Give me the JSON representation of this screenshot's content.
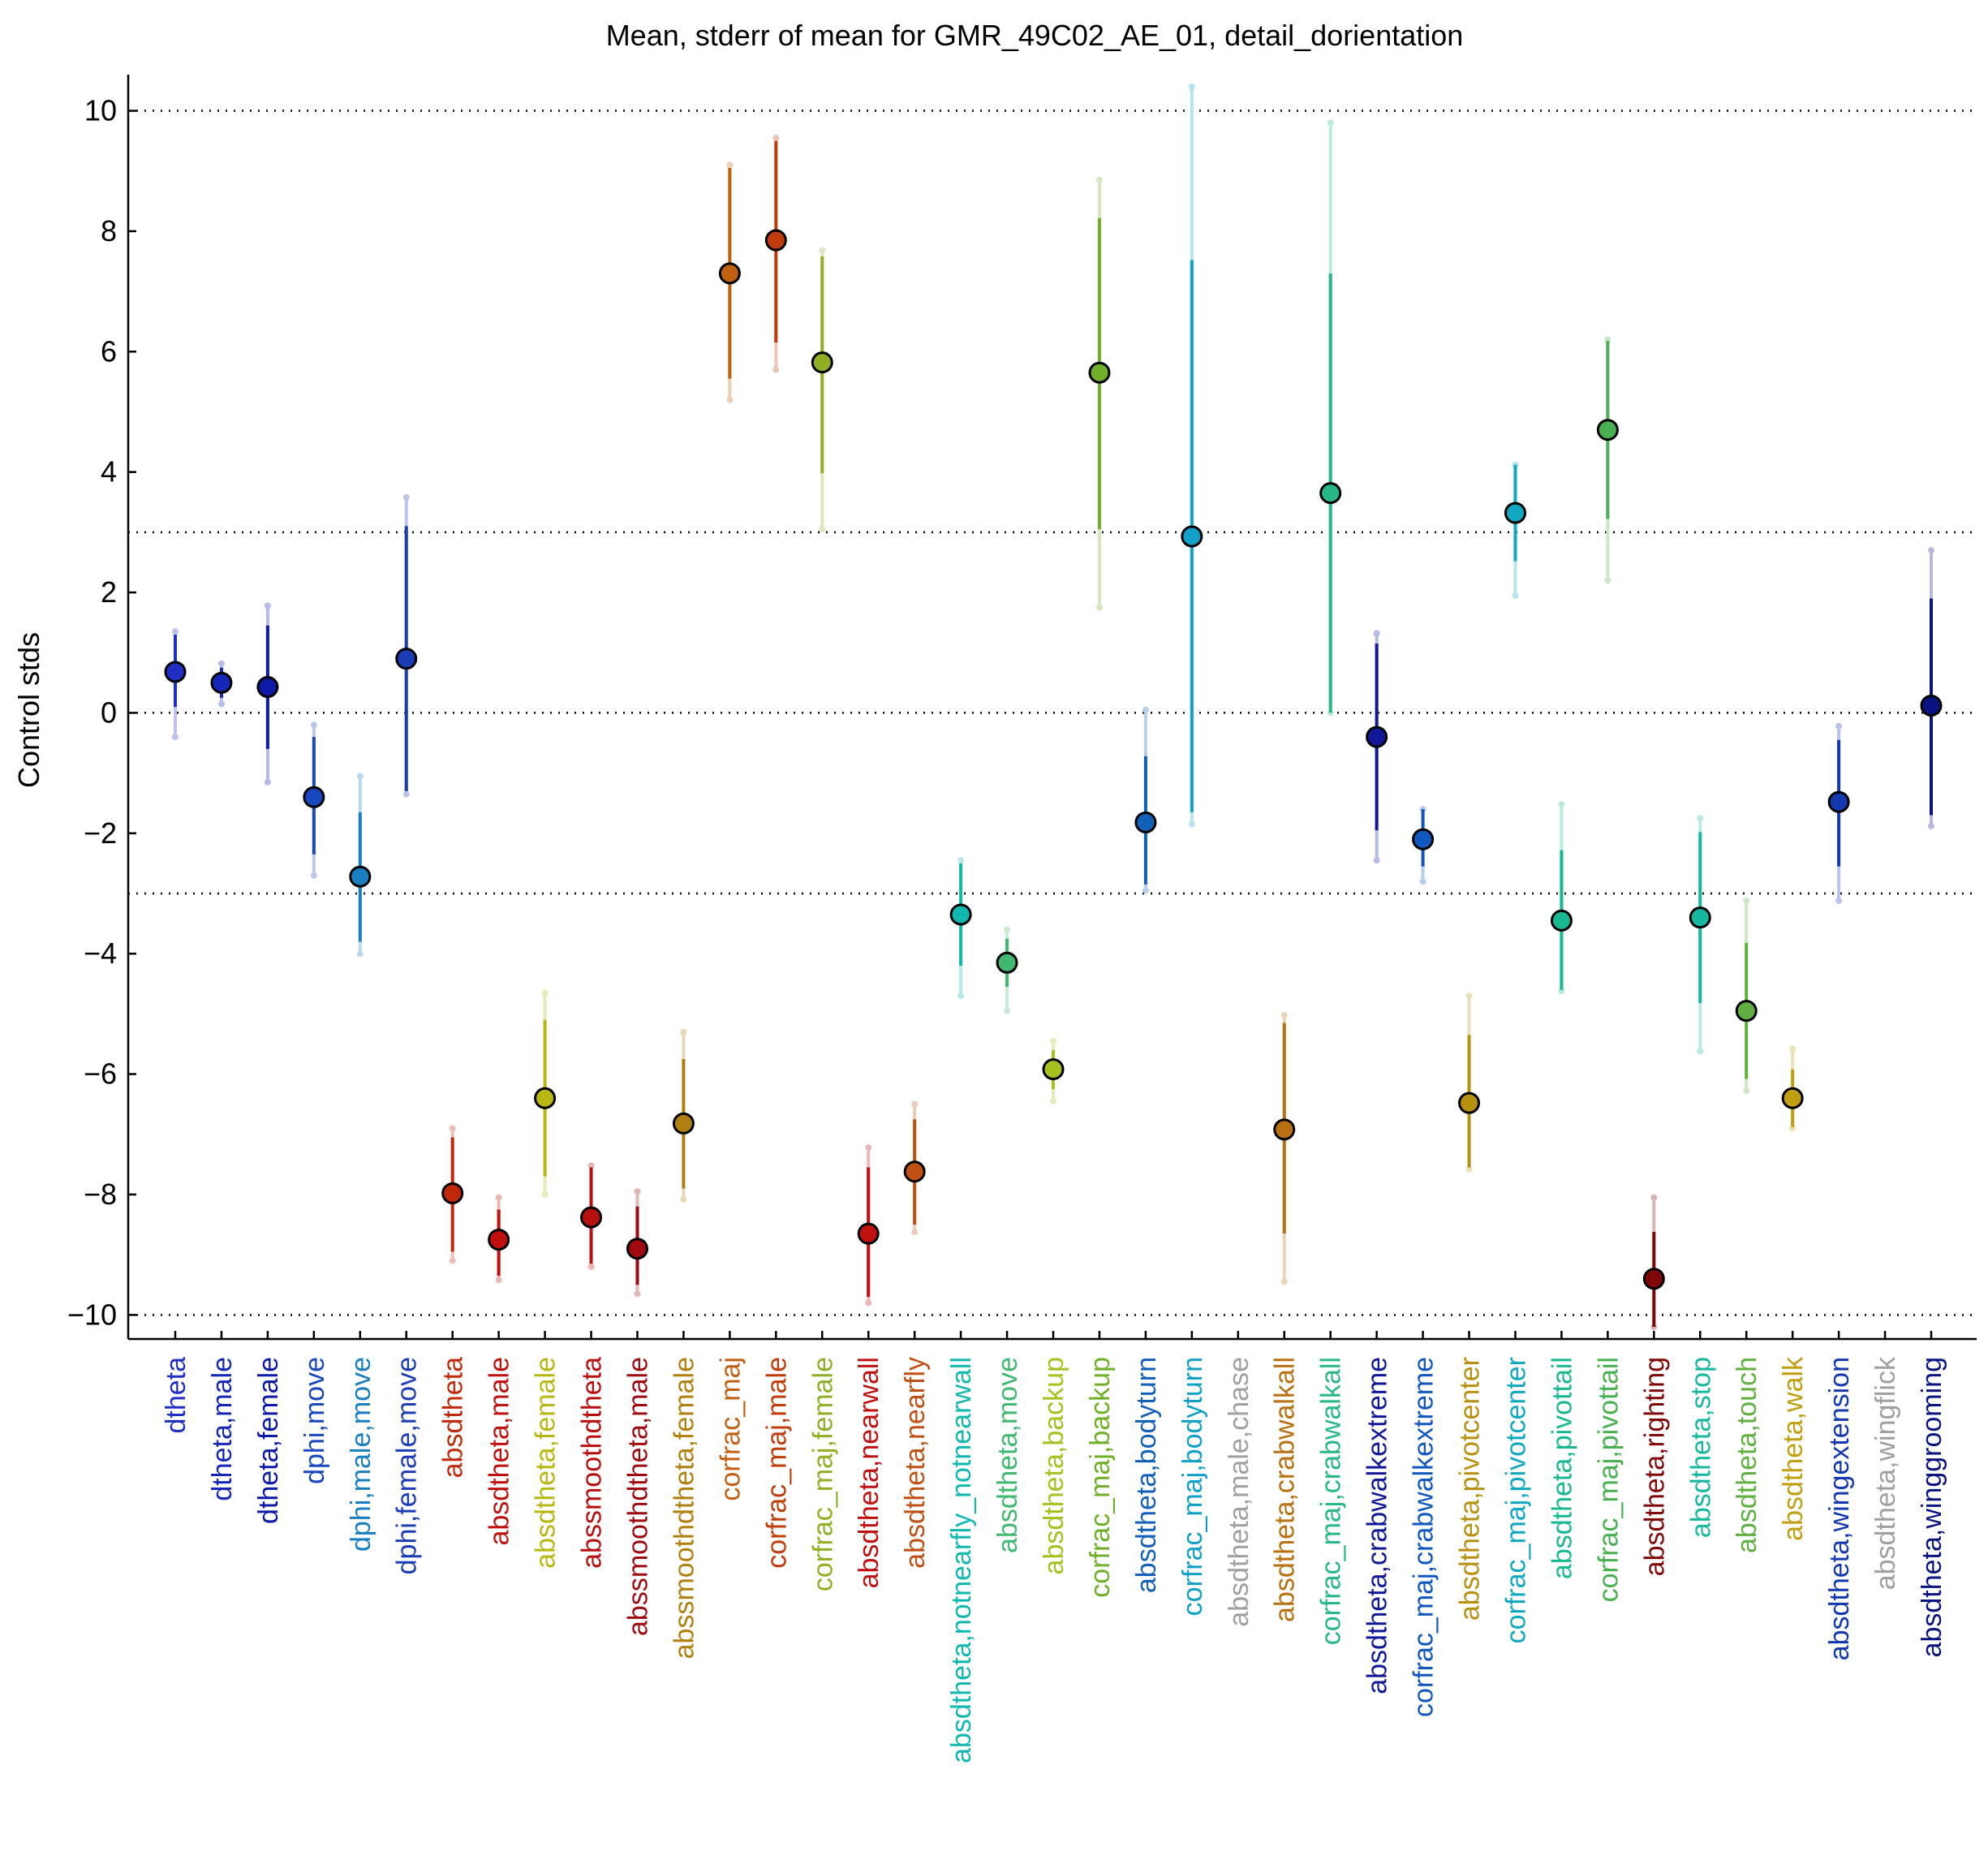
{
  "chart_data": {
    "type": "scatter",
    "title": "Mean, stderr of mean for GMR_49C02_AE_01, detail_dorientation",
    "xlabel": "",
    "ylabel": "Control stds",
    "ylim": [
      -10.4,
      10.6
    ],
    "yticks": [
      -10,
      -8,
      -6,
      -4,
      -2,
      0,
      2,
      4,
      6,
      8,
      10
    ],
    "reference_lines": [
      -10,
      -3,
      0,
      3,
      10
    ],
    "grid": false,
    "legend": "none",
    "points": [
      {
        "label": "dtheta",
        "mean": 0.68,
        "se_lo": 0.1,
        "se_hi": 1.3,
        "lo": -0.4,
        "hi": 1.35,
        "color": "#1f2fc4"
      },
      {
        "label": "dtheta,male",
        "mean": 0.5,
        "se_lo": 0.25,
        "se_hi": 0.75,
        "lo": 0.15,
        "hi": 0.82,
        "color": "#1427b8"
      },
      {
        "label": "dtheta,female",
        "mean": 0.43,
        "se_lo": -0.6,
        "se_hi": 1.45,
        "lo": -1.15,
        "hi": 1.78,
        "color": "#0d1aa8"
      },
      {
        "label": "dphi,move",
        "mean": -1.4,
        "se_lo": -2.35,
        "se_hi": -0.4,
        "lo": -2.7,
        "hi": -0.2,
        "color": "#1848c0"
      },
      {
        "label": "dphi,male,move",
        "mean": -2.72,
        "se_lo": -3.8,
        "se_hi": -1.65,
        "lo": -4.0,
        "hi": -1.05,
        "color": "#1a7fc0"
      },
      {
        "label": "dphi,female,move",
        "mean": 0.9,
        "se_lo": -1.3,
        "se_hi": 3.1,
        "lo": -1.35,
        "hi": 3.58,
        "color": "#1c3cb5"
      },
      {
        "label": "absdtheta",
        "mean": -7.98,
        "se_lo": -8.95,
        "se_hi": -7.05,
        "lo": -9.1,
        "hi": -6.9,
        "color": "#c02a0a"
      },
      {
        "label": "absdtheta,male",
        "mean": -8.75,
        "se_lo": -9.35,
        "se_hi": -8.25,
        "lo": -9.42,
        "hi": -8.05,
        "color": "#c0100e"
      },
      {
        "label": "absdtheta,female",
        "mean": -6.4,
        "se_lo": -7.7,
        "se_hi": -5.1,
        "lo": -8.0,
        "hi": -4.65,
        "color": "#b8b814"
      },
      {
        "label": "abssmoothdtheta",
        "mean": -8.38,
        "se_lo": -9.15,
        "se_hi": -7.55,
        "lo": -9.2,
        "hi": -7.52,
        "color": "#b80f0f"
      },
      {
        "label": "abssmoothdtheta,male",
        "mean": -8.9,
        "se_lo": -9.5,
        "se_hi": -8.2,
        "lo": -9.65,
        "hi": -7.95,
        "color": "#9e0a10"
      },
      {
        "label": "abssmoothdtheta,female",
        "mean": -6.82,
        "se_lo": -7.9,
        "se_hi": -5.75,
        "lo": -8.08,
        "hi": -5.3,
        "color": "#b08010"
      },
      {
        "label": "corfrac_maj",
        "mean": 7.3,
        "se_lo": 5.55,
        "se_hi": 9.05,
        "lo": 5.2,
        "hi": 9.1,
        "color": "#c06010"
      },
      {
        "label": "corfrac_maj,male",
        "mean": 7.85,
        "se_lo": 6.15,
        "se_hi": 9.5,
        "lo": 5.7,
        "hi": 9.55,
        "color": "#c03c0a"
      },
      {
        "label": "corfrac_maj,female",
        "mean": 5.82,
        "se_lo": 3.98,
        "se_hi": 7.58,
        "lo": 3.05,
        "hi": 7.68,
        "color": "#8fb025"
      },
      {
        "label": "absdtheta,nearwall",
        "mean": -8.65,
        "se_lo": -9.7,
        "se_hi": -7.55,
        "lo": -9.8,
        "hi": -7.22,
        "color": "#c01010"
      },
      {
        "label": "absdtheta,nearfly",
        "mean": -7.62,
        "se_lo": -8.5,
        "se_hi": -6.75,
        "lo": -8.62,
        "hi": -6.5,
        "color": "#c05014"
      },
      {
        "label": "absdtheta,notnearfly_notnearwall",
        "mean": -3.35,
        "se_lo": -4.2,
        "se_hi": -2.5,
        "lo": -4.7,
        "hi": -2.45,
        "color": "#10b8b0"
      },
      {
        "label": "absdtheta,move",
        "mean": -4.15,
        "se_lo": -4.55,
        "se_hi": -3.75,
        "lo": -4.95,
        "hi": -3.6,
        "color": "#40b870"
      },
      {
        "label": "absdtheta,backup",
        "mean": -5.92,
        "se_lo": -6.25,
        "se_hi": -5.6,
        "lo": -6.45,
        "hi": -5.45,
        "color": "#a8c020"
      },
      {
        "label": "corfrac_maj,backup",
        "mean": 5.65,
        "se_lo": 3.05,
        "se_hi": 8.22,
        "lo": 1.75,
        "hi": 8.85,
        "color": "#70b028"
      },
      {
        "label": "absdtheta,bodyturn",
        "mean": -1.82,
        "se_lo": -2.85,
        "se_hi": -0.72,
        "lo": -2.95,
        "hi": 0.05,
        "color": "#1260b8"
      },
      {
        "label": "corfrac_maj,bodyturn",
        "mean": 2.93,
        "se_lo": -1.65,
        "se_hi": 7.52,
        "lo": -1.85,
        "hi": 10.4,
        "color": "#10a0c8"
      },
      {
        "label": "absdtheta,male,chase",
        "mean": null,
        "se_lo": null,
        "se_hi": null,
        "lo": null,
        "hi": null,
        "color": "#a0a0a0"
      },
      {
        "label": "absdtheta,crabwalkall",
        "mean": -6.92,
        "se_lo": -8.65,
        "se_hi": -5.15,
        "lo": -9.45,
        "hi": -5.02,
        "color": "#b87010"
      },
      {
        "label": "corfrac_maj,crabwalkall",
        "mean": 3.65,
        "se_lo": 0.0,
        "se_hi": 7.3,
        "lo": 0.0,
        "hi": 9.8,
        "color": "#28b888"
      },
      {
        "label": "absdtheta,crabwalkextreme",
        "mean": -0.4,
        "se_lo": -1.95,
        "se_hi": 1.15,
        "lo": -2.45,
        "hi": 1.32,
        "color": "#101898"
      },
      {
        "label": "corfrac_maj,crabwalkextreme",
        "mean": -2.1,
        "se_lo": -2.55,
        "se_hi": -1.6,
        "lo": -2.8,
        "hi": -1.6,
        "color": "#1058c0"
      },
      {
        "label": "absdtheta,pivotcenter",
        "mean": -6.48,
        "se_lo": -7.55,
        "se_hi": -5.35,
        "lo": -7.58,
        "hi": -4.7,
        "color": "#b89010"
      },
      {
        "label": "corfrac_maj,pivotcenter",
        "mean": 3.32,
        "se_lo": 2.52,
        "se_hi": 4.12,
        "lo": 1.95,
        "hi": 4.12,
        "color": "#10a8c0"
      },
      {
        "label": "absdtheta,pivottail",
        "mean": -3.45,
        "se_lo": -4.6,
        "se_hi": -2.28,
        "lo": -4.62,
        "hi": -1.52,
        "color": "#18b890"
      },
      {
        "label": "corfrac_maj,pivottail",
        "mean": 4.7,
        "se_lo": 3.22,
        "se_hi": 6.18,
        "lo": 2.2,
        "hi": 6.2,
        "color": "#48b050"
      },
      {
        "label": "absdtheta,righting",
        "mean": -9.4,
        "se_lo": -10.2,
        "se_hi": -8.62,
        "lo": -10.2,
        "hi": -8.05,
        "color": "#800808"
      },
      {
        "label": "absdtheta,stop",
        "mean": -3.4,
        "se_lo": -4.82,
        "se_hi": -1.98,
        "lo": -5.62,
        "hi": -1.75,
        "color": "#18b8a0"
      },
      {
        "label": "absdtheta,touch",
        "mean": -4.95,
        "se_lo": -6.08,
        "se_hi": -3.82,
        "lo": -6.28,
        "hi": -3.12,
        "color": "#60b040"
      },
      {
        "label": "absdtheta,walk",
        "mean": -6.4,
        "se_lo": -6.88,
        "se_hi": -5.92,
        "lo": -6.9,
        "hi": -5.58,
        "color": "#c0a010"
      },
      {
        "label": "absdtheta,wingextension",
        "mean": -1.48,
        "se_lo": -2.55,
        "se_hi": -0.45,
        "lo": -3.12,
        "hi": -0.22,
        "color": "#1438b0"
      },
      {
        "label": "absdtheta,wingflick",
        "mean": null,
        "se_lo": null,
        "se_hi": null,
        "lo": null,
        "hi": null,
        "color": "#a0a0a0"
      },
      {
        "label": "absdtheta,winggrooming",
        "mean": 0.12,
        "se_lo": -1.7,
        "se_hi": 1.9,
        "lo": -1.88,
        "hi": 2.7,
        "color": "#0a1480"
      }
    ]
  }
}
